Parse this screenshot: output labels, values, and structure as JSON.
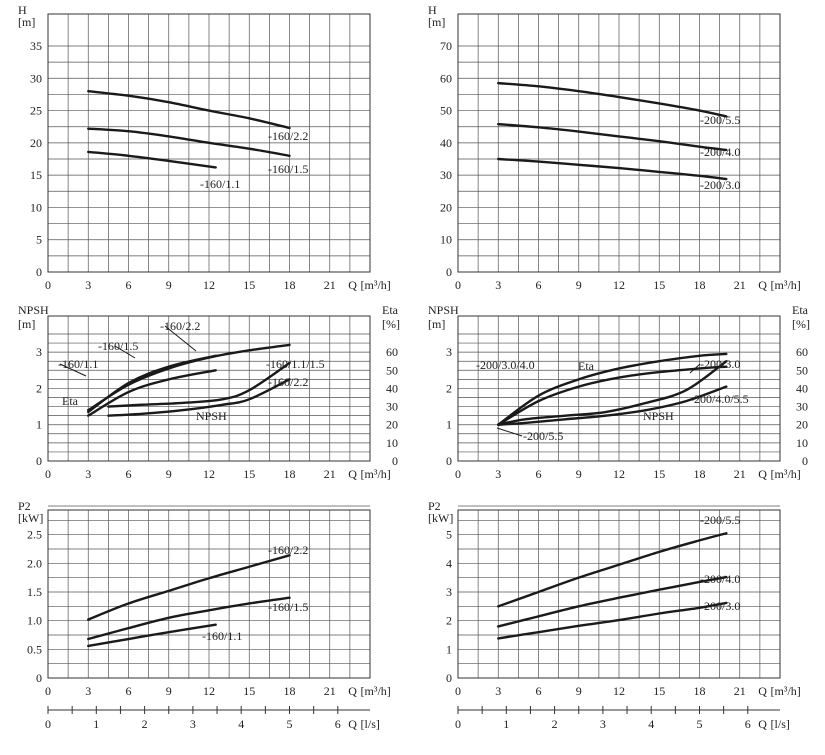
{
  "chart_data": [
    {
      "id": "L1",
      "type": "line",
      "ylabel": "H",
      "yunit": "[m]",
      "xlabel": "Q",
      "xunit": "[m³/h]",
      "xlim": [
        0,
        24
      ],
      "ylim": [
        0,
        35
      ],
      "xticks": [
        0,
        3,
        6,
        9,
        12,
        15,
        18,
        21
      ],
      "yticks": [
        0,
        5,
        10,
        15,
        20,
        25,
        30,
        35
      ],
      "series": [
        {
          "name": "-160/2.2",
          "x": [
            3,
            6,
            9,
            12,
            15,
            18
          ],
          "y": [
            28.0,
            27.3,
            26.3,
            25.0,
            23.8,
            22.3
          ]
        },
        {
          "name": "-160/1.5",
          "x": [
            3,
            6,
            9,
            12,
            15,
            18
          ],
          "y": [
            22.2,
            21.8,
            21.0,
            20.0,
            19.1,
            18.0
          ]
        },
        {
          "name": "-160/1.1",
          "x": [
            3,
            6,
            9,
            12.5
          ],
          "y": [
            18.6,
            18.0,
            17.2,
            16.2
          ]
        }
      ]
    },
    {
      "id": "R1",
      "type": "line",
      "ylabel": "H",
      "yunit": "[m]",
      "xlabel": "Q",
      "xunit": "[m³/h]",
      "xlim": [
        0,
        24
      ],
      "ylim": [
        0,
        70
      ],
      "xticks": [
        0,
        3,
        6,
        9,
        12,
        15,
        18,
        21
      ],
      "yticks": [
        0,
        10,
        20,
        30,
        40,
        50,
        60,
        70
      ],
      "series": [
        {
          "name": "-200/5.5",
          "x": [
            3,
            6,
            9,
            12,
            15,
            18,
            20
          ],
          "y": [
            58.5,
            57.5,
            56.0,
            54.2,
            52.2,
            50.0,
            48.2
          ]
        },
        {
          "name": "-200/4.0",
          "x": [
            3,
            6,
            9,
            12,
            15,
            18,
            20
          ],
          "y": [
            45.8,
            44.8,
            43.5,
            42.0,
            40.5,
            38.8,
            37.8
          ]
        },
        {
          "name": "-200/3.0",
          "x": [
            3,
            6,
            9,
            12,
            15,
            18,
            20
          ],
          "y": [
            35.0,
            34.2,
            33.2,
            32.2,
            31.0,
            29.8,
            28.8
          ]
        }
      ]
    },
    {
      "id": "L2",
      "type": "line",
      "ylabel": "NPSH",
      "yunit": "[m]",
      "y2label": "Eta",
      "y2unit": "[%]",
      "xlabel": "Q",
      "xunit": "[m³/h]",
      "xlim": [
        0,
        24
      ],
      "ylim": [
        0,
        3.5
      ],
      "y2lim": [
        0,
        70
      ],
      "xticks": [
        0,
        3,
        6,
        9,
        12,
        15,
        18,
        21
      ],
      "yticks": [
        0,
        1,
        2,
        3
      ],
      "y2ticks": [
        0,
        10,
        20,
        30,
        40,
        50,
        60
      ],
      "annotations": [
        "Eta",
        "NPSH"
      ],
      "series": [
        {
          "name": "-160/2.2",
          "kind": "eta",
          "x": [
            3,
            6,
            9,
            12,
            15,
            18
          ],
          "y": [
            28,
            42,
            51,
            57,
            61,
            64
          ]
        },
        {
          "name": "-160/1.5",
          "kind": "eta",
          "x": [
            3,
            6,
            9,
            12.5
          ],
          "y": [
            27,
            43,
            52,
            58
          ]
        },
        {
          "name": "-160/1.1",
          "kind": "eta",
          "x": [
            3,
            6,
            9,
            12.5
          ],
          "y": [
            25,
            38,
            45,
            50
          ]
        },
        {
          "name": "-160/1.1/1.5",
          "kind": "npsh",
          "x": [
            4.5,
            7,
            10,
            13,
            15,
            18
          ],
          "y": [
            1.5,
            1.55,
            1.6,
            1.7,
            1.95,
            2.7
          ]
        },
        {
          "name": "-160/2.2",
          "kind": "npsh",
          "x": [
            4.5,
            7,
            10,
            13,
            15,
            18
          ],
          "y": [
            1.25,
            1.3,
            1.4,
            1.55,
            1.7,
            2.25
          ]
        }
      ]
    },
    {
      "id": "R2",
      "type": "line",
      "ylabel": "NPSH",
      "yunit": "[m]",
      "y2label": "Eta",
      "y2unit": "[%]",
      "xlabel": "Q",
      "xunit": "[m³/h]",
      "xlim": [
        0,
        24
      ],
      "ylim": [
        0,
        3.5
      ],
      "y2lim": [
        0,
        70
      ],
      "xticks": [
        0,
        3,
        6,
        9,
        12,
        15,
        18,
        21
      ],
      "yticks": [
        0,
        1,
        2,
        3
      ],
      "y2ticks": [
        0,
        10,
        20,
        30,
        40,
        50,
        60
      ],
      "annotations": [
        "Eta",
        "NPSH"
      ],
      "series": [
        {
          "name": "-200/3.0/4.0",
          "kind": "eta",
          "x": [
            3,
            6,
            9,
            12,
            15,
            18,
            20
          ],
          "y": [
            20,
            36,
            45,
            51,
            55,
            58,
            59
          ]
        },
        {
          "name": "-200/5.5",
          "kind": "eta",
          "x": [
            3,
            6,
            9,
            12,
            15,
            18,
            20
          ],
          "y": [
            20,
            33,
            41,
            46,
            49,
            51,
            52
          ]
        },
        {
          "name": "-200/3.0",
          "kind": "npsh",
          "x": [
            3,
            5,
            8,
            11,
            14,
            17,
            20
          ],
          "y": [
            1.0,
            1.15,
            1.25,
            1.35,
            1.6,
            1.95,
            2.75
          ]
        },
        {
          "name": "-200/4.0/5.5",
          "kind": "npsh",
          "x": [
            3,
            5,
            8,
            11,
            14,
            17,
            20
          ],
          "y": [
            1.0,
            1.05,
            1.15,
            1.25,
            1.4,
            1.65,
            2.05
          ]
        }
      ]
    },
    {
      "id": "L3",
      "type": "line",
      "ylabel": "P2",
      "yunit": "[kW]",
      "xlabel": "Q",
      "xunit": "[m³/h]",
      "x2label": "Q",
      "x2unit": "[l/s]",
      "xlim": [
        0,
        24
      ],
      "ylim": [
        0,
        3.0
      ],
      "xticks": [
        0,
        3,
        6,
        9,
        12,
        15,
        18,
        21
      ],
      "yticks": [
        0,
        0.5,
        1.0,
        1.5,
        2.0,
        2.5
      ],
      "x2ticks": [
        0,
        1,
        2,
        3,
        4,
        5,
        6
      ],
      "series": [
        {
          "name": "-160/2.2",
          "x": [
            3,
            6,
            9,
            12,
            15,
            18
          ],
          "y": [
            1.02,
            1.3,
            1.52,
            1.74,
            1.94,
            2.14
          ]
        },
        {
          "name": "-160/1.5",
          "x": [
            3,
            6,
            9,
            12,
            15,
            18
          ],
          "y": [
            0.68,
            0.87,
            1.05,
            1.18,
            1.3,
            1.4
          ]
        },
        {
          "name": "-160/1.1",
          "x": [
            3,
            6,
            9,
            12.5
          ],
          "y": [
            0.56,
            0.68,
            0.8,
            0.93
          ]
        }
      ]
    },
    {
      "id": "R3",
      "type": "line",
      "ylabel": "P2",
      "yunit": "[kW]",
      "xlabel": "Q",
      "xunit": "[m³/h]",
      "x2label": "Q",
      "x2unit": "[l/s]",
      "xlim": [
        0,
        24
      ],
      "ylim": [
        0,
        6
      ],
      "xticks": [
        0,
        3,
        6,
        9,
        12,
        15,
        18,
        21
      ],
      "yticks": [
        0,
        1,
        2,
        3,
        4,
        5
      ],
      "x2ticks": [
        0,
        1,
        2,
        3,
        4,
        5,
        6
      ],
      "series": [
        {
          "name": "-200/5.5",
          "x": [
            3,
            6,
            9,
            12,
            15,
            18,
            20
          ],
          "y": [
            2.5,
            3.0,
            3.5,
            3.95,
            4.4,
            4.8,
            5.05
          ]
        },
        {
          "name": "-200/4.0",
          "x": [
            3,
            6,
            9,
            12,
            15,
            18,
            20
          ],
          "y": [
            1.8,
            2.15,
            2.5,
            2.8,
            3.08,
            3.35,
            3.52
          ]
        },
        {
          "name": "-200/3.0",
          "x": [
            3,
            6,
            9,
            12,
            15,
            18,
            20
          ],
          "y": [
            1.38,
            1.6,
            1.82,
            2.02,
            2.25,
            2.45,
            2.62
          ]
        }
      ]
    }
  ]
}
